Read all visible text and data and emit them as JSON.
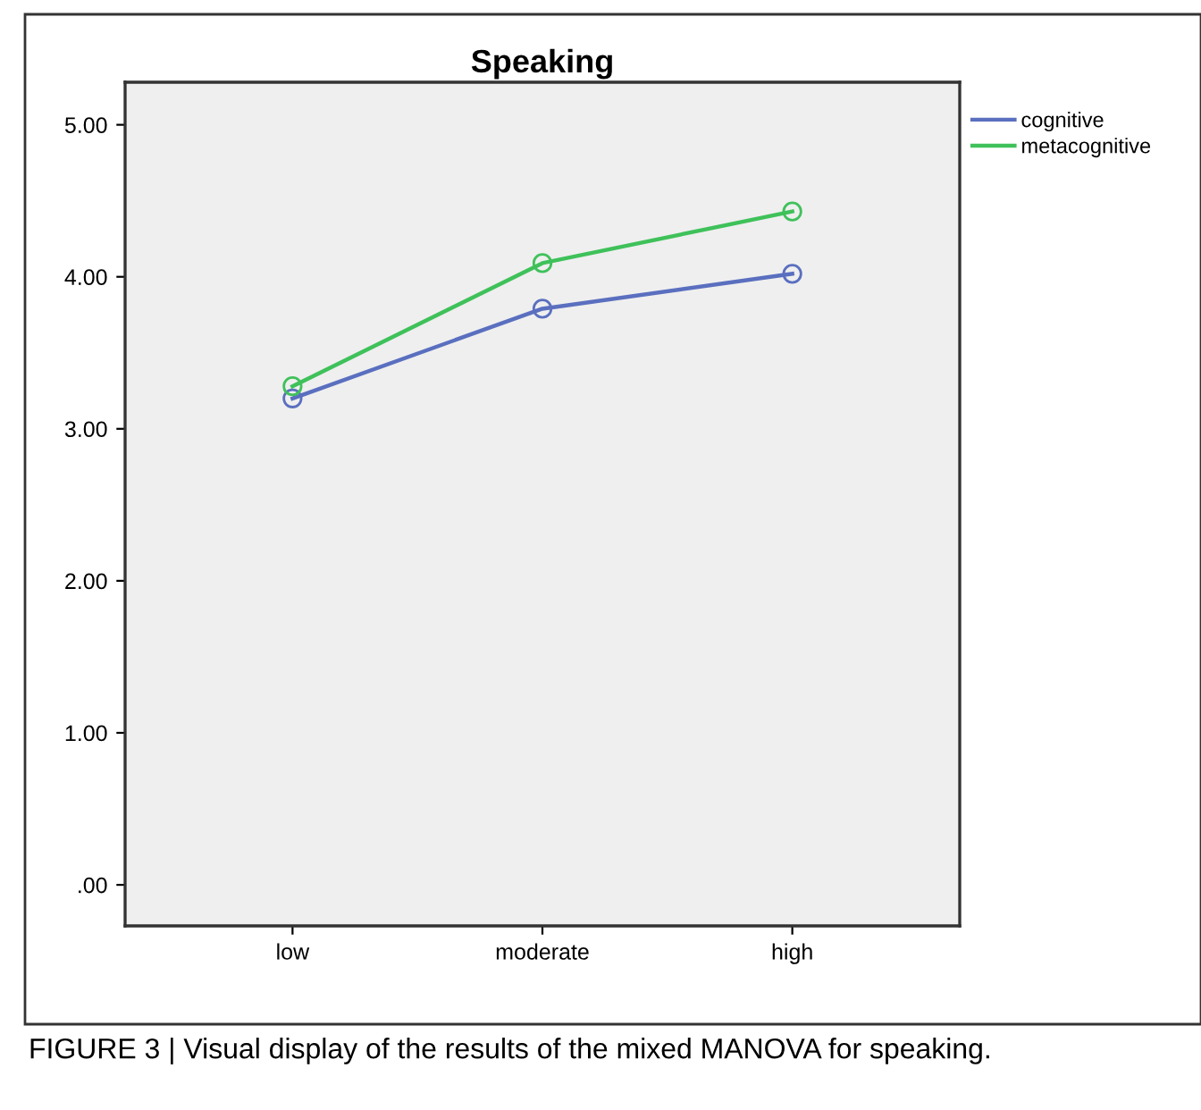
{
  "chart_data": {
    "type": "line",
    "title": "Speaking",
    "categories": [
      "low",
      "moderate",
      "high"
    ],
    "series": [
      {
        "name": "cognitive",
        "color": "#5a6fbf",
        "values": [
          3.2,
          3.79,
          4.02
        ]
      },
      {
        "name": "metacognitive",
        "color": "#3fc15a",
        "values": [
          3.28,
          4.09,
          4.43
        ]
      }
    ],
    "ylim": [
      -0.27,
      5.28
    ],
    "yticks": [
      {
        "value": 0,
        "label": ".00"
      },
      {
        "value": 1,
        "label": "1.00"
      },
      {
        "value": 2,
        "label": "2.00"
      },
      {
        "value": 3,
        "label": "3.00"
      },
      {
        "value": 4,
        "label": "4.00"
      },
      {
        "value": 5,
        "label": "5.00"
      }
    ],
    "marker": "circle",
    "line_style": "solid",
    "grid": false,
    "legend": "top right",
    "annotations": [
      "FIGURE 3 | Visual display of the results of the mixed MANOVA for speaking."
    ]
  }
}
